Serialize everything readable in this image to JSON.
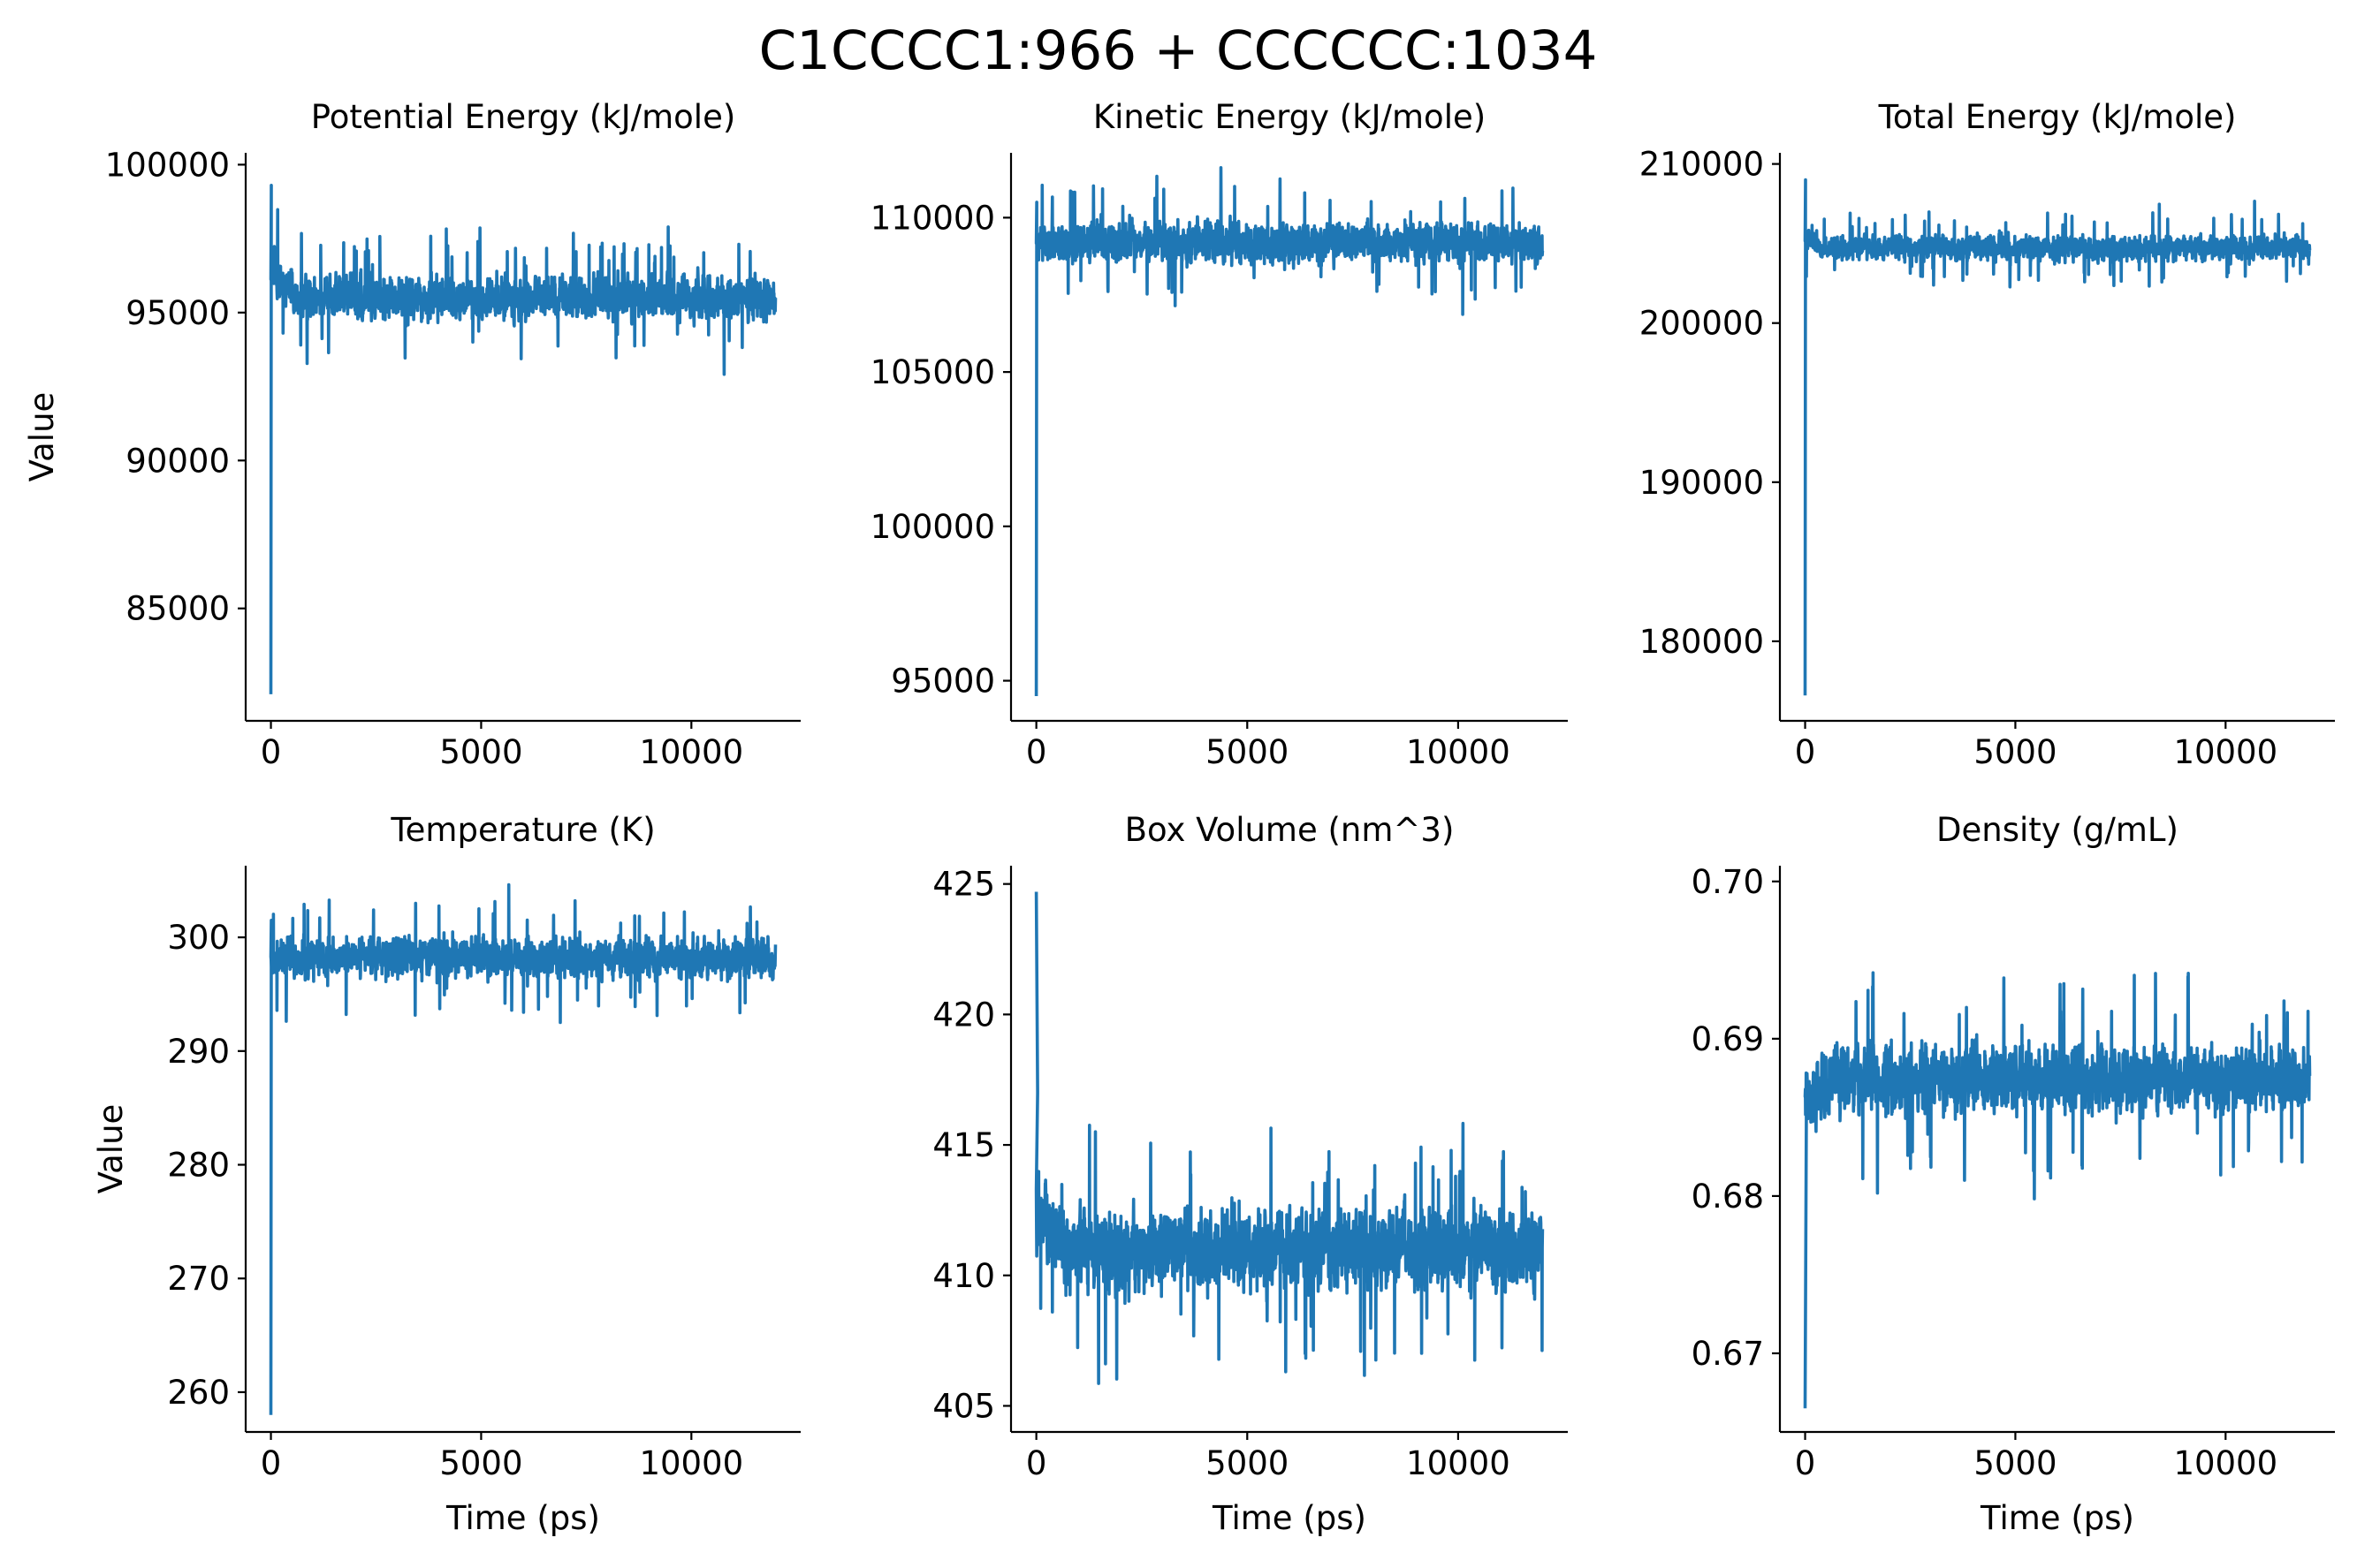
{
  "figure": {
    "title": "C1CCCC1:966 + CCCCCC:1034",
    "line_color": "#1f77b4",
    "axis_color": "#000000"
  },
  "chart_data": [
    {
      "type": "line",
      "title": "Potential Energy (kJ/mole)",
      "xlabel": "",
      "ylabel": "Value",
      "xlim": [
        -600,
        12600
      ],
      "ylim": [
        81200,
        100400
      ],
      "xticks": [
        0,
        5000,
        10000
      ],
      "xtick_labels": [
        "0",
        "5000",
        "10000"
      ],
      "yticks": [
        85000,
        90000,
        95000,
        100000
      ],
      "ytick_labels": [
        "85000",
        "90000",
        "95000",
        "100000"
      ],
      "series": [
        {
          "x_start": 0,
          "x_end": 12000,
          "n_points": 2400,
          "initial_value": 82100,
          "peak_value": 99300,
          "peak_time": 10,
          "early_level": 96500,
          "early_end_time": 600,
          "plateau_mean": 95500,
          "noise_amplitude": 1100
        }
      ],
      "grid": false
    },
    {
      "type": "line",
      "title": "Kinetic Energy (kJ/mole)",
      "xlabel": "",
      "ylabel": "",
      "xlim": [
        -600,
        12600
      ],
      "ylim": [
        93700,
        112100
      ],
      "xticks": [
        0,
        5000,
        10000
      ],
      "xtick_labels": [
        "0",
        "5000",
        "10000"
      ],
      "yticks": [
        95000,
        100000,
        105000,
        110000
      ],
      "ytick_labels": [
        "95000",
        "100000",
        "105000",
        "110000"
      ],
      "series": [
        {
          "x_start": 0,
          "x_end": 12000,
          "n_points": 2400,
          "initial_value": 94500,
          "peak_value": 110500,
          "peak_time": 10,
          "early_level": 109200,
          "early_end_time": 200,
          "plateau_mean": 109200,
          "noise_amplitude": 1000
        }
      ],
      "grid": false
    },
    {
      "type": "line",
      "title": "Total Energy (kJ/mole)",
      "xlabel": "",
      "ylabel": "",
      "xlim": [
        -600,
        12600
      ],
      "ylim": [
        175000,
        210700
      ],
      "xticks": [
        0,
        5000,
        10000
      ],
      "xtick_labels": [
        "0",
        "5000",
        "10000"
      ],
      "yticks": [
        180000,
        190000,
        200000,
        210000
      ],
      "ytick_labels": [
        "180000",
        "190000",
        "200000",
        "210000"
      ],
      "series": [
        {
          "x_start": 0,
          "x_end": 12000,
          "n_points": 2400,
          "initial_value": 176600,
          "peak_value": 209000,
          "peak_time": 10,
          "early_level": 205500,
          "early_end_time": 400,
          "plateau_mean": 204700,
          "noise_amplitude": 1200
        }
      ],
      "grid": false
    },
    {
      "type": "line",
      "title": "Temperature (K)",
      "xlabel": "Time (ps)",
      "ylabel": "Value",
      "xlim": [
        -600,
        12600
      ],
      "ylim": [
        256500,
        306300
      ],
      "xticks": [
        0,
        5000,
        10000
      ],
      "xtick_labels": [
        "0",
        "5000",
        "10000"
      ],
      "yticks": [
        260000,
        270000,
        280000,
        290000,
        300000
      ],
      "ytick_labels": [
        "260",
        "270",
        "280",
        "290",
        "300"
      ],
      "value_scale": 1000,
      "series": [
        {
          "x_start": 0,
          "x_end": 12000,
          "n_points": 2400,
          "initial_value": 258000,
          "peak_value": 301500,
          "peak_time": 10,
          "early_level": 298200,
          "early_end_time": 200,
          "plateau_mean": 298200,
          "noise_amplitude": 2700
        }
      ],
      "grid": false
    },
    {
      "type": "line",
      "title": "Box Volume (nm^3)",
      "xlabel": "Time (ps)",
      "ylabel": "",
      "xlim": [
        -600,
        12600
      ],
      "ylim": [
        404000,
        425700
      ],
      "xticks": [
        0,
        5000,
        10000
      ],
      "xtick_labels": [
        "0",
        "5000",
        "10000"
      ],
      "yticks": [
        405000,
        410000,
        415000,
        420000,
        425000
      ],
      "ytick_labels": [
        "405",
        "410",
        "415",
        "420",
        "425"
      ],
      "value_scale": 1000,
      "series": [
        {
          "x_start": 0,
          "x_end": 12000,
          "n_points": 2400,
          "initial_value": 424700,
          "peak_value": 417000,
          "peak_time": 30,
          "early_level": 412500,
          "early_end_time": 800,
          "plateau_mean": 411000,
          "noise_amplitude": 2300
        }
      ],
      "grid": false
    },
    {
      "type": "line",
      "title": "Density (g/mL)",
      "xlabel": "Time (ps)",
      "ylabel": "",
      "xlim": [
        -600,
        12600
      ],
      "ylim": [
        665000,
        701000
      ],
      "xticks": [
        0,
        5000,
        10000
      ],
      "xtick_labels": [
        "0",
        "5000",
        "10000"
      ],
      "yticks": [
        670000,
        680000,
        690000,
        700000
      ],
      "ytick_labels": [
        "0.67",
        "0.68",
        "0.69",
        "0.70"
      ],
      "value_scale": 1000000,
      "series": [
        {
          "x_start": 0,
          "x_end": 12000,
          "n_points": 2400,
          "initial_value": 666500,
          "peak_value": 686000,
          "peak_time": 30,
          "early_level": 686000,
          "early_end_time": 800,
          "plateau_mean": 687500,
          "noise_amplitude": 3300
        }
      ],
      "grid": false
    }
  ]
}
